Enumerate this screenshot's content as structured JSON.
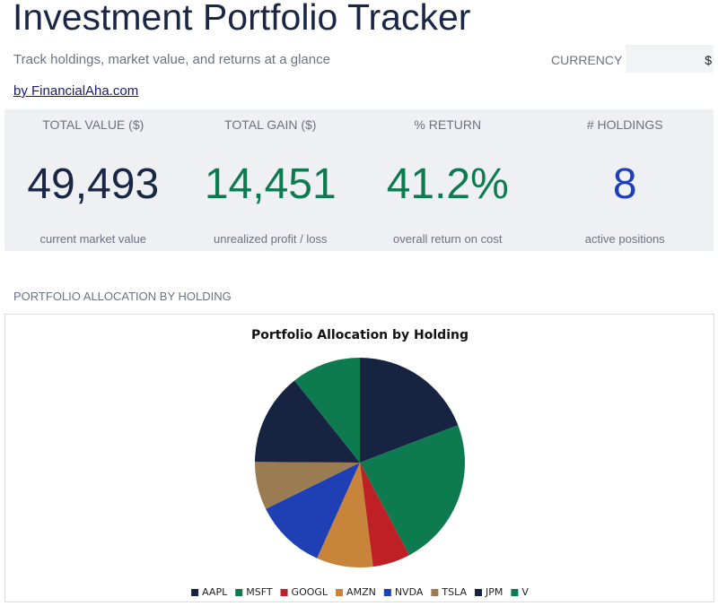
{
  "header": {
    "title": "Investment Portfolio Tracker",
    "subtitle": "Track holdings, market value, and returns at a glance",
    "currency_label": "CURRENCY",
    "currency_value": "$",
    "link": "by FinancialAha.com"
  },
  "kpis": [
    {
      "label": "TOTAL VALUE ($)",
      "value": "49,493",
      "note": "current market value",
      "color": "#1a2744"
    },
    {
      "label": "TOTAL GAIN ($)",
      "value": "14,451",
      "note": "unrealized profit / loss",
      "color": "#0e7a4f"
    },
    {
      "label": "% RETURN",
      "value": "41.2%",
      "note": "overall return on cost",
      "color": "#0e7a4f"
    },
    {
      "label": "# HOLDINGS",
      "value": "8",
      "note": "active positions",
      "color": "#1f3fb5"
    }
  ],
  "section_label": "PORTFOLIO ALLOCATION BY HOLDING",
  "chart_data": {
    "type": "pie",
    "title": "Portfolio Allocation by Holding",
    "categories": [
      "AAPL",
      "MSFT",
      "GOOGL",
      "AMZN",
      "NVDA",
      "TSLA",
      "JPM",
      "V"
    ],
    "values": [
      19.2,
      23,
      5.8,
      8.7,
      11,
      7.4,
      14.2,
      10.7
    ],
    "colors": [
      "#172441",
      "#0d7a50",
      "#bf2026",
      "#c8843a",
      "#1f3fb5",
      "#9b7b52",
      "#172441",
      "#0d7a50"
    ],
    "legend": "bottom"
  }
}
